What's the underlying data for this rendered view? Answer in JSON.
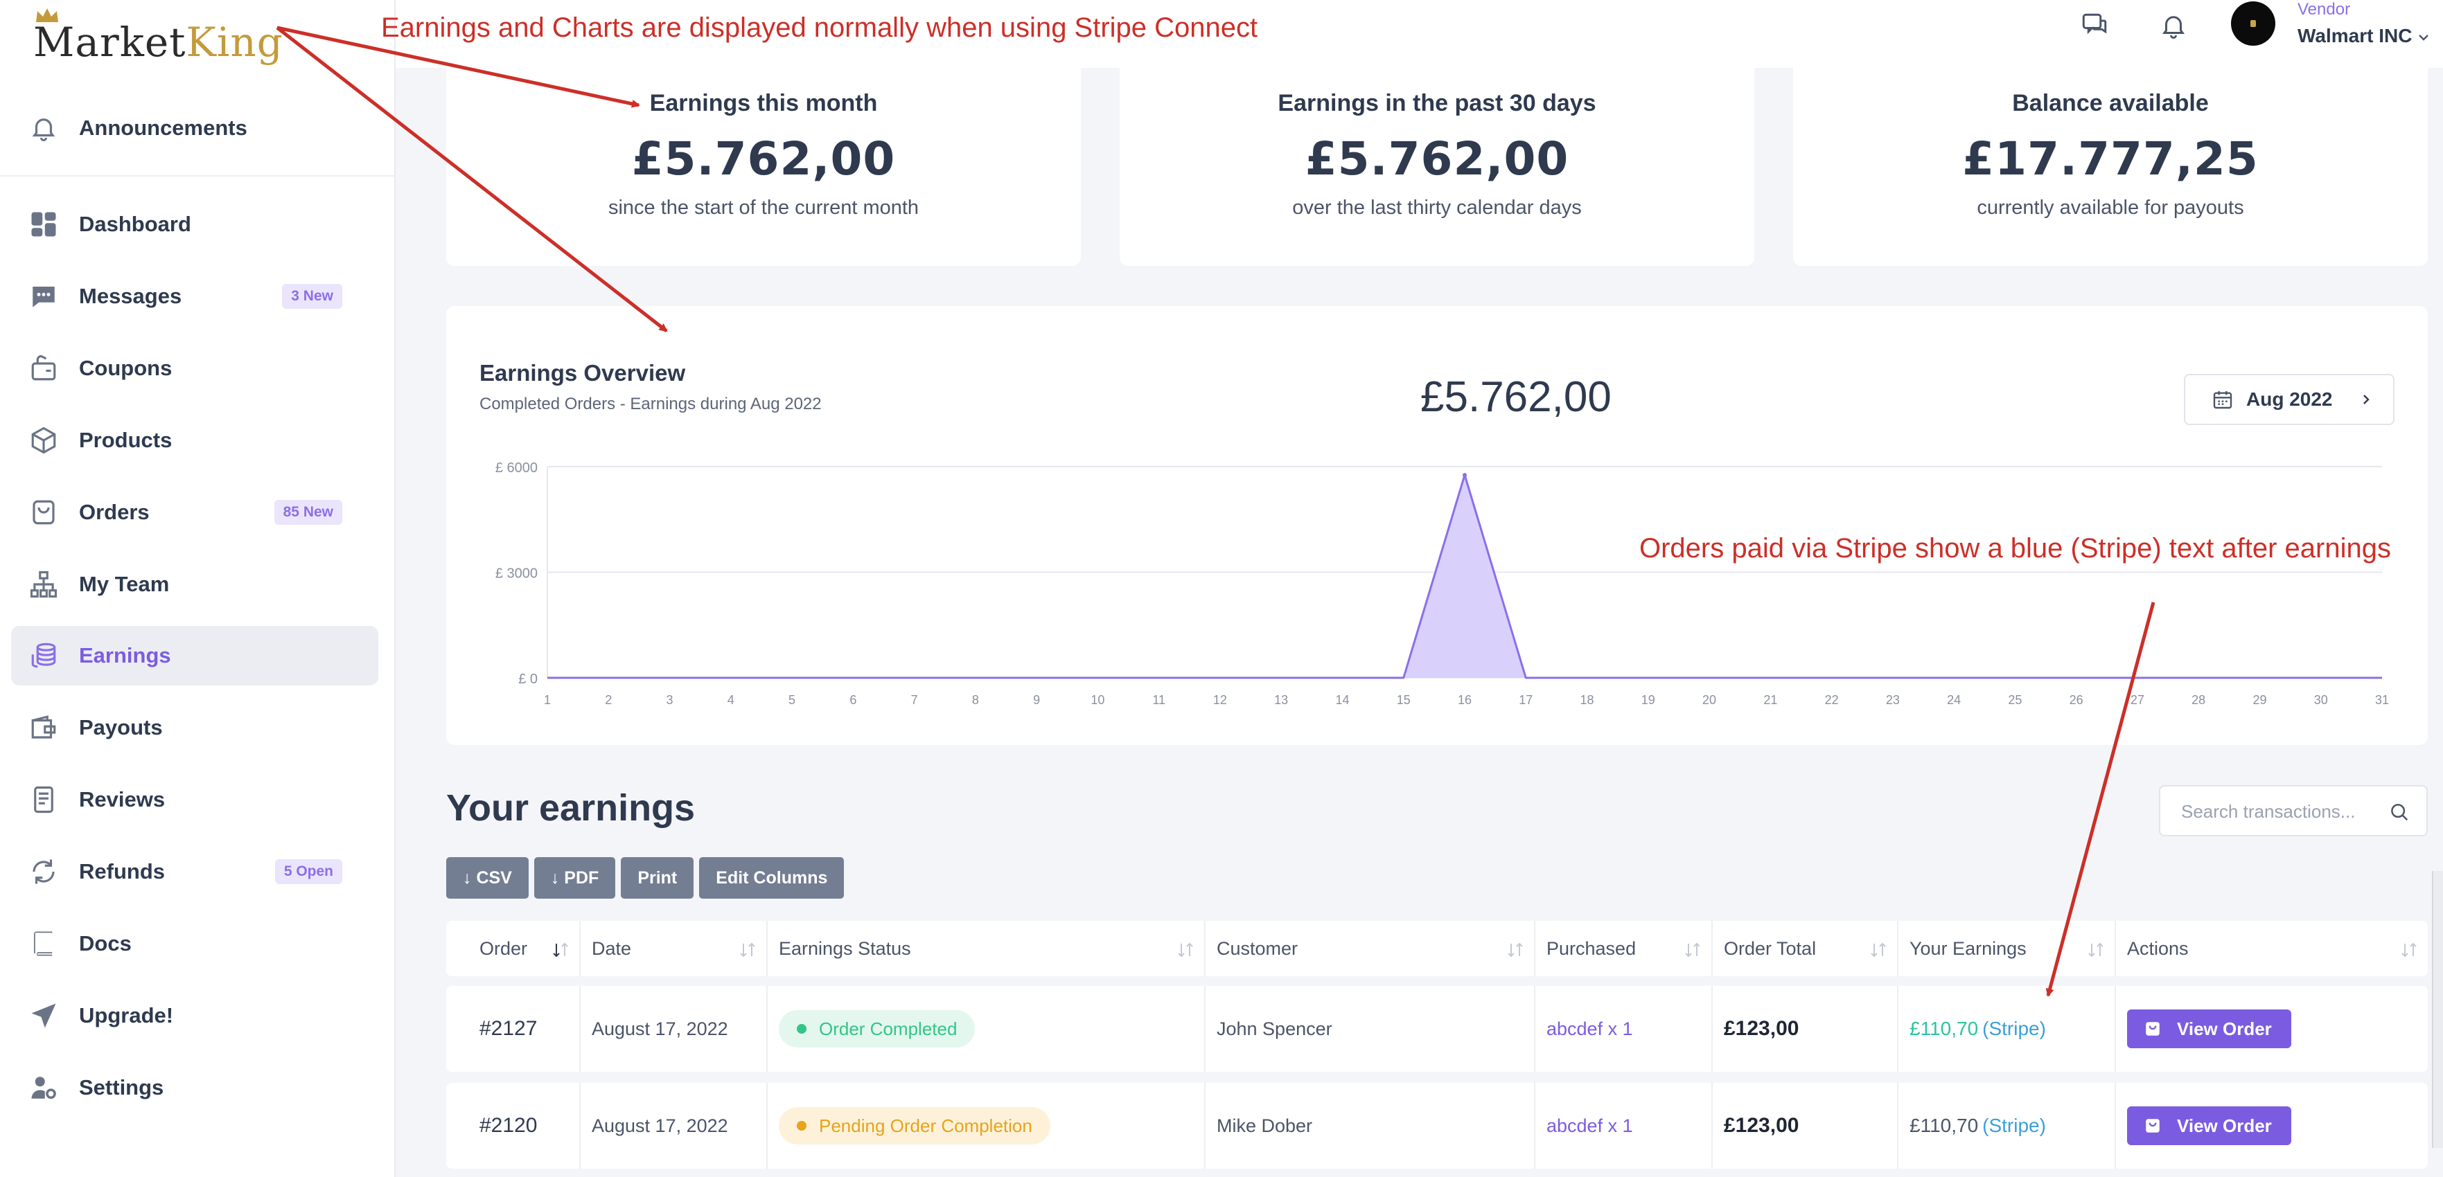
{
  "brand": {
    "logo_text_1": "Market",
    "logo_text_2": "King"
  },
  "sidebar": {
    "items": [
      {
        "label": "Announcements",
        "icon": "bell-icon"
      },
      {
        "label": "Dashboard",
        "icon": "dashboard-icon"
      },
      {
        "label": "Messages",
        "icon": "chat-icon",
        "badge": "3 New"
      },
      {
        "label": "Coupons",
        "icon": "coupon-icon"
      },
      {
        "label": "Products",
        "icon": "box-icon"
      },
      {
        "label": "Orders",
        "icon": "bag-icon",
        "badge": "85 New"
      },
      {
        "label": "My Team",
        "icon": "team-icon"
      },
      {
        "label": "Earnings",
        "icon": "coins-icon",
        "active": true
      },
      {
        "label": "Payouts",
        "icon": "wallet-icon"
      },
      {
        "label": "Reviews",
        "icon": "review-icon"
      },
      {
        "label": "Refunds",
        "icon": "refresh-icon",
        "badge": "5 Open"
      },
      {
        "label": "Docs",
        "icon": "book-icon"
      },
      {
        "label": "Upgrade!",
        "icon": "paper-plane-icon"
      },
      {
        "label": "Settings",
        "icon": "user-gear-icon"
      }
    ]
  },
  "header": {
    "vendor_role": "Vendor",
    "vendor_name": "Walmart INC"
  },
  "stats": [
    {
      "title": "Earnings this month",
      "value": "£5.762,00",
      "sub": "since the start of the current month"
    },
    {
      "title": "Earnings in the past 30 days",
      "value": "£5.762,00",
      "sub": "over the last thirty calendar days"
    },
    {
      "title": "Balance available",
      "value": "£17.777,25",
      "sub": "currently available for payouts"
    }
  ],
  "overview": {
    "title": "Earnings Overview",
    "subtitle": "Completed Orders - Earnings during Aug 2022",
    "total": "£5.762,00",
    "month_label": "Aug 2022"
  },
  "chart_data": {
    "type": "area",
    "title": "Earnings Overview",
    "subtitle": "Completed Orders - Earnings during Aug 2022",
    "x": [
      1,
      2,
      3,
      4,
      5,
      6,
      7,
      8,
      9,
      10,
      11,
      12,
      13,
      14,
      15,
      16,
      17,
      18,
      19,
      20,
      21,
      22,
      23,
      24,
      25,
      26,
      27,
      28,
      29,
      30,
      31
    ],
    "y": [
      0,
      0,
      0,
      0,
      0,
      0,
      0,
      0,
      0,
      0,
      0,
      0,
      0,
      0,
      0,
      5762,
      0,
      0,
      0,
      0,
      0,
      0,
      0,
      0,
      0,
      0,
      0,
      0,
      0,
      0,
      0
    ],
    "ylim": [
      0,
      6000
    ],
    "y_ticks": [
      0,
      3000,
      6000
    ],
    "y_tick_labels": [
      "£ 0",
      "£ 3000",
      "£ 6000"
    ],
    "color": "#8b6fe8",
    "fill": "#d9d0fb",
    "grid": true
  },
  "earnings": {
    "title": "Your earnings",
    "search_placeholder": "Search transactions...",
    "buttons": [
      "↓ CSV",
      "↓ PDF",
      "Print",
      "Edit Columns"
    ],
    "columns": [
      "Order",
      "Date",
      "Earnings Status",
      "Customer",
      "Purchased",
      "Order Total",
      "Your Earnings",
      "Actions"
    ],
    "rows": [
      {
        "order": "#2127",
        "date": "August 17, 2022",
        "status": "Order Completed",
        "customer": "John Spencer",
        "purchased": "abcdef x 1",
        "total": "£123,00",
        "earnings": "£110,70",
        "stripe": "(Stripe)",
        "action": "View Order"
      },
      {
        "order": "#2120",
        "date": "August 17, 2022",
        "status": "Pending Order Completion",
        "customer": "Mike Dober",
        "purchased": "abcdef x 1",
        "total": "£123,00",
        "earnings": "£110,70",
        "stripe": "(Stripe)",
        "action": "View Order"
      }
    ]
  },
  "annotations": {
    "top": "Earnings and Charts are displayed normally when using Stripe Connect",
    "right": "Orders paid via Stripe show a blue (Stripe) text after earnings",
    "color": "#cc2f28"
  }
}
